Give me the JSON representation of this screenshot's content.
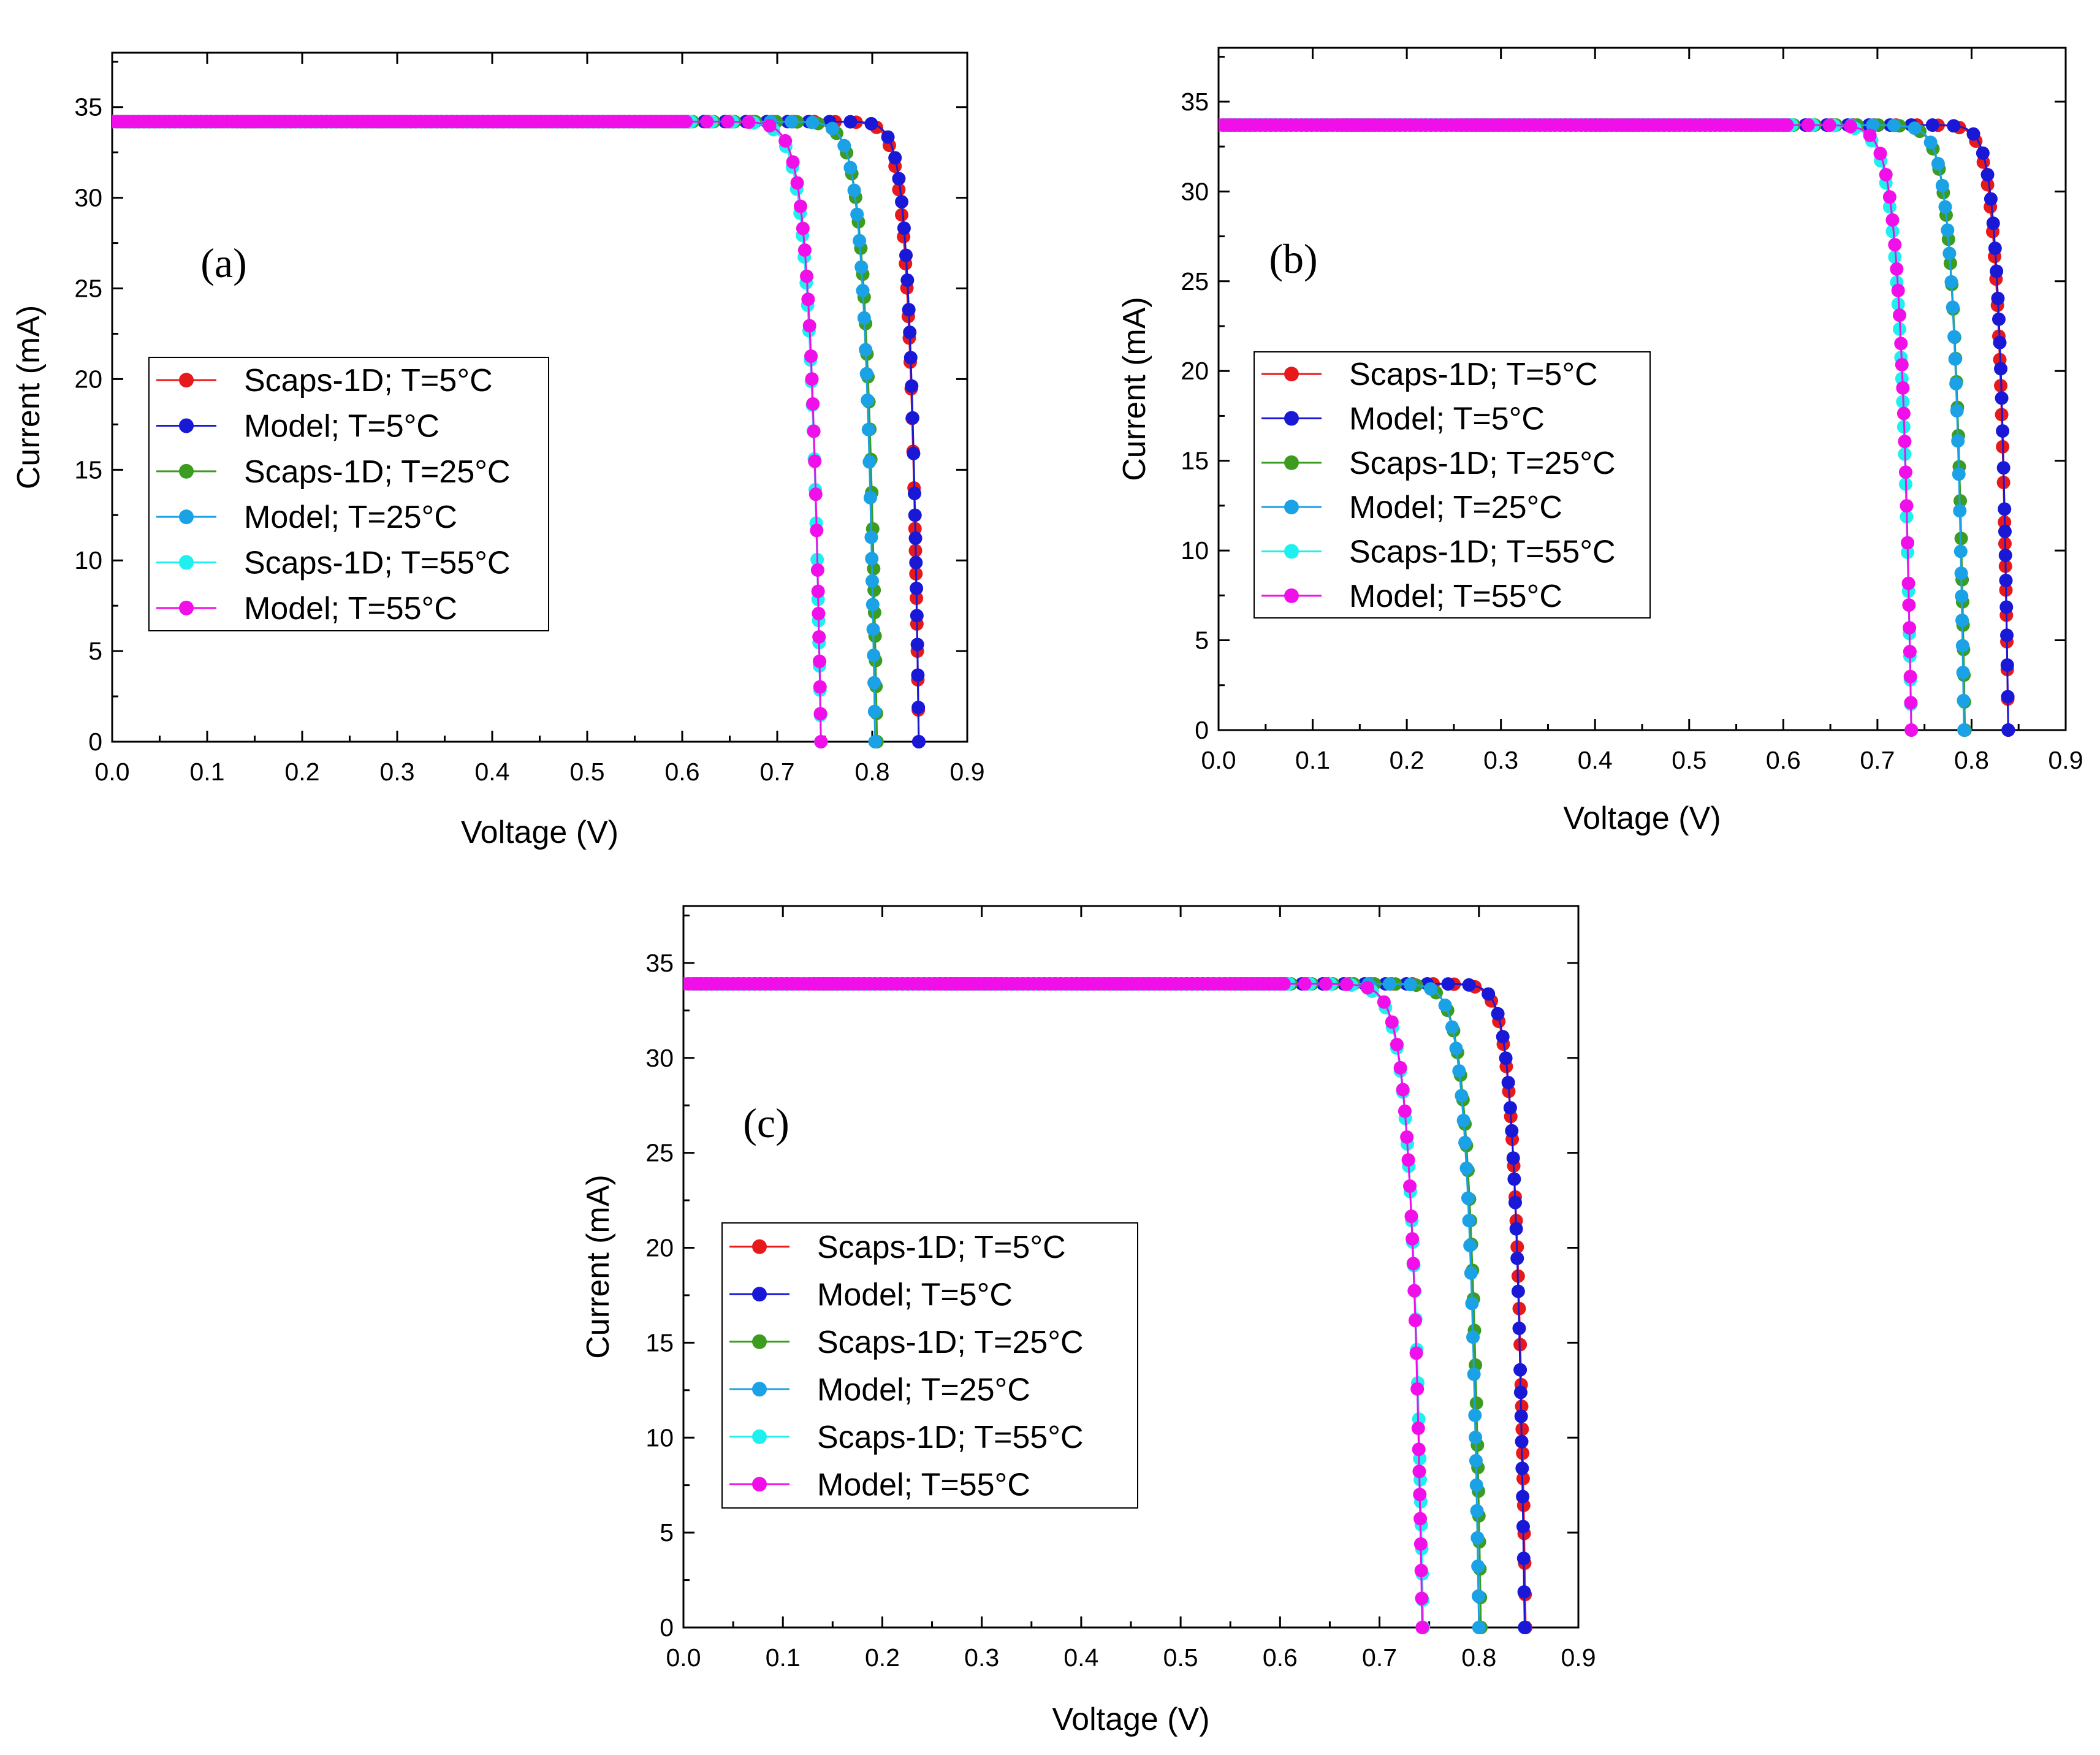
{
  "chart_data": [
    {
      "type": "line",
      "panel_label": "(a)",
      "xlabel": "Voltage (V)",
      "ylabel": "Current (mA)",
      "xlim": [
        0,
        0.9
      ],
      "ylim": [
        0,
        38
      ],
      "xticks": [
        "0.0",
        "0.1",
        "0.2",
        "0.3",
        "0.4",
        "0.5",
        "0.6",
        "0.7",
        "0.8",
        "0.9"
      ],
      "yticks": [
        "0",
        "5",
        "10",
        "15",
        "20",
        "25",
        "30",
        "35"
      ],
      "legend_position": "center-left",
      "isc": 34.2,
      "series": [
        {
          "name": "Scaps-1D; T=5°C",
          "color": "#e8191b",
          "voc": 0.849,
          "knee": 0.792,
          "vt": 0.0095,
          "marker_start": 0.607,
          "marker_step": 0.012
        },
        {
          "name": "Model; T=5°C",
          "color": "#1818d6",
          "voc": 0.849,
          "knee": 0.794,
          "vt": 0.0088,
          "marker_start": 0.601,
          "marker_step": 0.012
        },
        {
          "name": "Scaps-1D; T=25°C",
          "color": "#3c9c1f",
          "voc": 0.805,
          "knee": 0.742,
          "vt": 0.0107,
          "marker_start": 0.611,
          "marker_step": 0.012
        },
        {
          "name": "Model; T=25°C",
          "color": "#1ba1e6",
          "voc": 0.803,
          "knee": 0.744,
          "vt": 0.01,
          "marker_start": 0.605,
          "marker_step": 0.012
        },
        {
          "name": "Scaps-1D; T=55°C",
          "color": "#1ef0f0",
          "voc": 0.746,
          "knee": 0.682,
          "vt": 0.0115,
          "marker_start": 0.609,
          "marker_step": 0.012
        },
        {
          "name": "Model; T=55°C",
          "color": "#f00fe8",
          "voc": 0.746,
          "knee": 0.683,
          "vt": 0.0108,
          "marker_start": 0.604,
          "marker_step": 0.012
        }
      ]
    },
    {
      "type": "line",
      "panel_label": "(b)",
      "xlabel": "Voltage (V)",
      "ylabel": "Current (mA)",
      "xlim": [
        0,
        0.9
      ],
      "ylim": [
        0,
        38
      ],
      "xticks": [
        "0.0",
        "0.1",
        "0.2",
        "0.3",
        "0.4",
        "0.5",
        "0.6",
        "0.7",
        "0.8",
        "0.9"
      ],
      "yticks": [
        "0",
        "5",
        "10",
        "15",
        "20",
        "25",
        "30",
        "35"
      ],
      "legend_position": "center-left",
      "isc": 33.7,
      "series": [
        {
          "name": "Scaps-1D; T=5°C",
          "color": "#e8191b",
          "voc": 0.839,
          "knee": 0.782,
          "vt": 0.0095,
          "marker_start": 0.607,
          "marker_step": 0.012
        },
        {
          "name": "Model; T=5°C",
          "color": "#1818d6",
          "voc": 0.839,
          "knee": 0.784,
          "vt": 0.0088,
          "marker_start": 0.601,
          "marker_step": 0.012
        },
        {
          "name": "Scaps-1D; T=25°C",
          "color": "#3c9c1f",
          "voc": 0.793,
          "knee": 0.735,
          "vt": 0.0105,
          "marker_start": 0.611,
          "marker_step": 0.012
        },
        {
          "name": "Model; T=25°C",
          "color": "#1ba1e6",
          "voc": 0.792,
          "knee": 0.737,
          "vt": 0.01,
          "marker_start": 0.605,
          "marker_step": 0.012
        },
        {
          "name": "Scaps-1D; T=55°C",
          "color": "#1ef0f0",
          "voc": 0.736,
          "knee": 0.676,
          "vt": 0.0115,
          "marker_start": 0.609,
          "marker_step": 0.012
        },
        {
          "name": "Model; T=55°C",
          "color": "#f00fe8",
          "voc": 0.736,
          "knee": 0.677,
          "vt": 0.0108,
          "marker_start": 0.604,
          "marker_step": 0.012
        }
      ]
    },
    {
      "type": "line",
      "panel_label": "(c)",
      "xlabel": "Voltage (V)",
      "ylabel": "Current (mA)",
      "xlim": [
        0,
        0.9
      ],
      "ylim": [
        0,
        38
      ],
      "xticks": [
        "0.0",
        "0.1",
        "0.2",
        "0.3",
        "0.4",
        "0.5",
        "0.6",
        "0.7",
        "0.8",
        "0.9"
      ],
      "yticks": [
        "0",
        "5",
        "10",
        "15",
        "20",
        "25",
        "30",
        "35"
      ],
      "legend_position": "bottom-left",
      "isc": 33.9,
      "series": [
        {
          "name": "Scaps-1D; T=5°C",
          "color": "#e8191b",
          "voc": 0.847,
          "knee": 0.788,
          "vt": 0.0095,
          "marker_start": 0.607,
          "marker_step": 0.012
        },
        {
          "name": "Model; T=5°C",
          "color": "#1818d6",
          "voc": 0.846,
          "knee": 0.79,
          "vt": 0.0088,
          "marker_start": 0.601,
          "marker_step": 0.012
        },
        {
          "name": "Scaps-1D; T=25°C",
          "color": "#3c9c1f",
          "voc": 0.802,
          "knee": 0.74,
          "vt": 0.0105,
          "marker_start": 0.611,
          "marker_step": 0.012
        },
        {
          "name": "Model; T=25°C",
          "color": "#1ba1e6",
          "voc": 0.8,
          "knee": 0.742,
          "vt": 0.01,
          "marker_start": 0.605,
          "marker_step": 0.012
        },
        {
          "name": "Scaps-1D; T=55°C",
          "color": "#1ef0f0",
          "voc": 0.744,
          "knee": 0.681,
          "vt": 0.0115,
          "marker_start": 0.609,
          "marker_step": 0.012
        },
        {
          "name": "Model; T=55°C",
          "color": "#f00fe8",
          "voc": 0.743,
          "knee": 0.682,
          "vt": 0.0108,
          "marker_start": 0.604,
          "marker_step": 0.012
        }
      ]
    }
  ]
}
